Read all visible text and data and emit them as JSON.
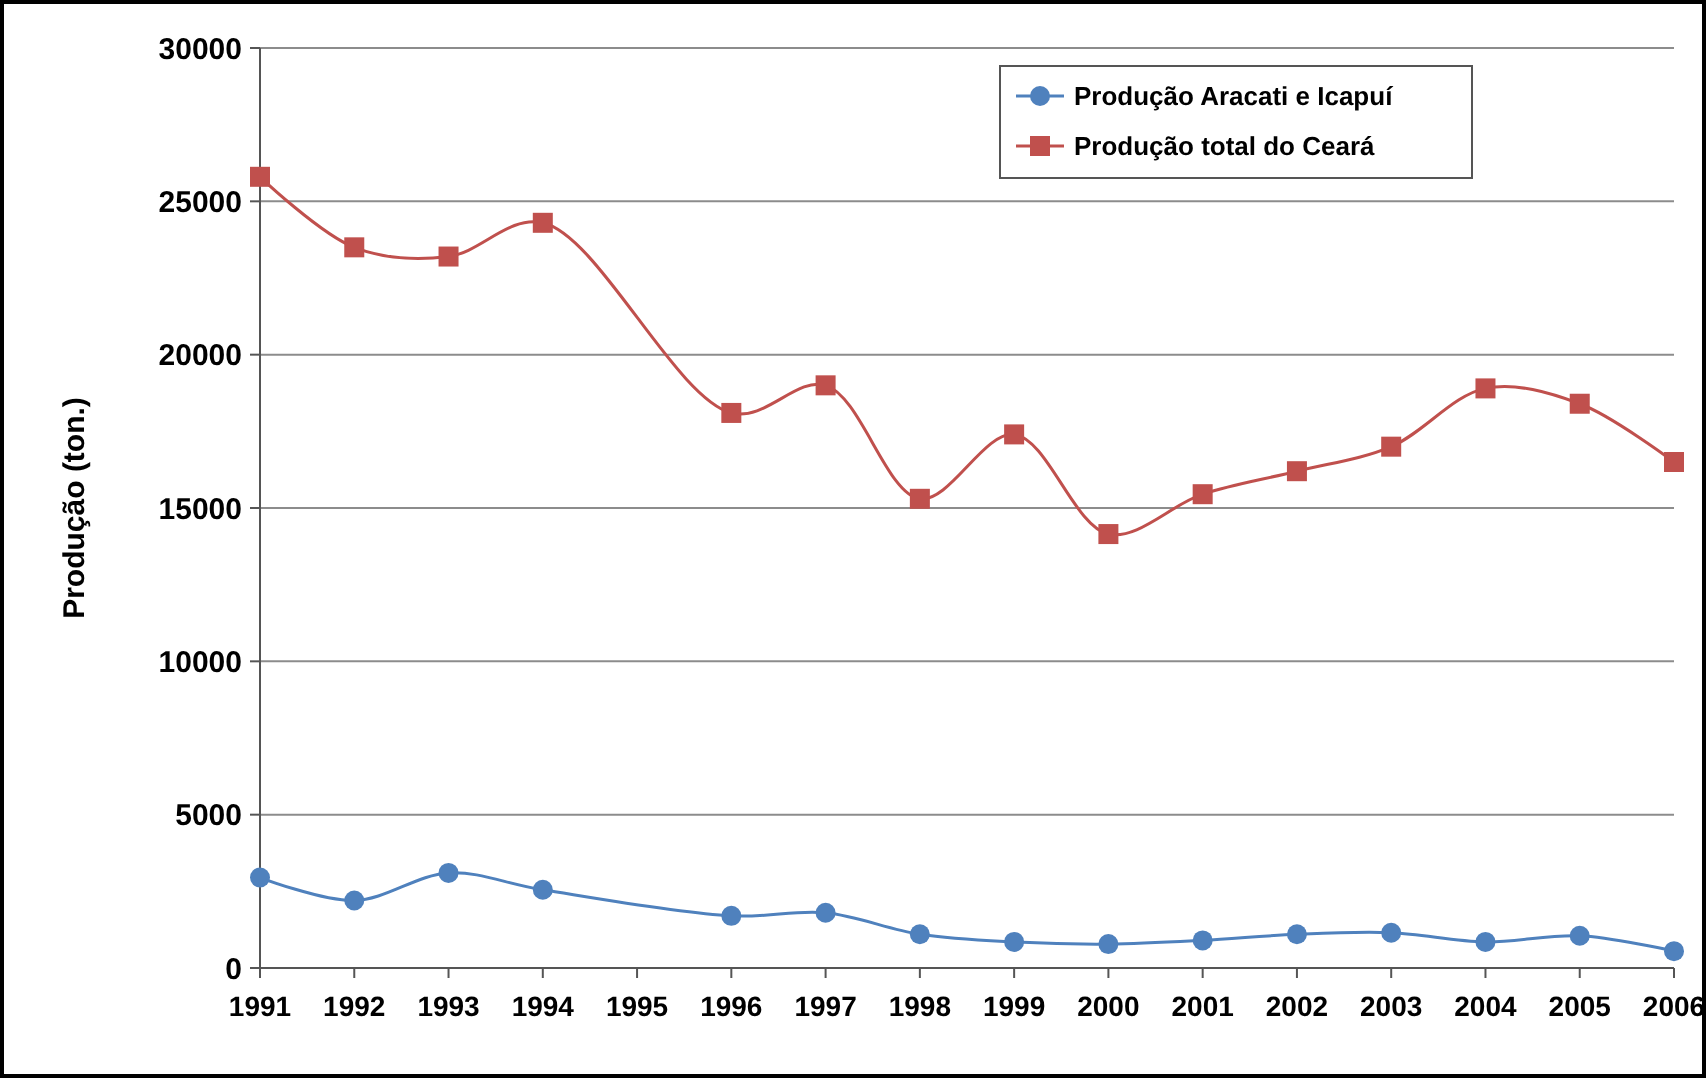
{
  "chart_data": {
    "type": "line",
    "ylabel": "Produção (ton.)",
    "categories": [
      "1991",
      "1992",
      "1993",
      "1994",
      "1995",
      "1996",
      "1997",
      "1998",
      "1999",
      "2000",
      "2001",
      "2002",
      "2003",
      "2004",
      "2005",
      "2006"
    ],
    "series": [
      {
        "name": "Produção Aracati e Icapuí",
        "color": "#4f81bd",
        "marker": "circle",
        "values": [
          2950,
          2200,
          3100,
          2550,
          null,
          1700,
          1800,
          1100,
          850,
          780,
          900,
          1100,
          1150,
          850,
          1050,
          550
        ]
      },
      {
        "name": "Produção total do Ceará",
        "color": "#c0504d",
        "marker": "square",
        "values": [
          25800,
          23500,
          23200,
          24300,
          null,
          18100,
          19000,
          15300,
          17400,
          14150,
          15450,
          16200,
          17000,
          18900,
          18400,
          16500
        ]
      }
    ],
    "ylim": [
      0,
      30000
    ],
    "yticks": [
      0,
      5000,
      10000,
      15000,
      20000,
      25000,
      30000
    ],
    "grid": "y",
    "legend": "top right",
    "line_style": "solid"
  }
}
